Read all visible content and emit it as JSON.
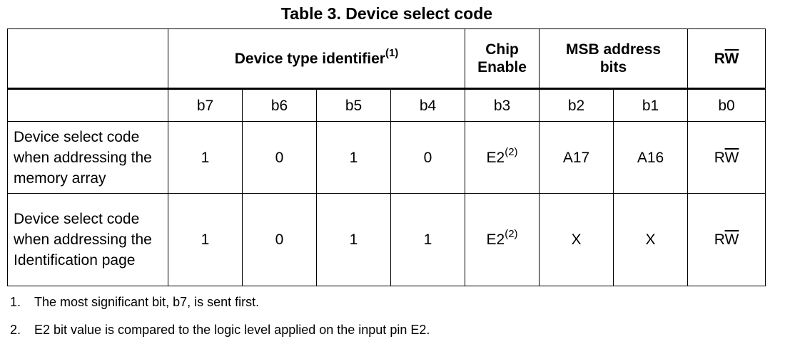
{
  "caption": "Table 3. Device select code",
  "header": {
    "device_type": "Device type identifier",
    "device_type_ref": "(1)",
    "chip_enable_line1": "Chip",
    "chip_enable_line2": "Enable",
    "msb_line1": "MSB address",
    "msb_line2": "bits",
    "rw_r": "R",
    "rw_w": "W"
  },
  "bits": [
    "b7",
    "b6",
    "b5",
    "b4",
    "b3",
    "b2",
    "b1",
    "b0"
  ],
  "rows": [
    {
      "label": "Device select code when addressing the memory array",
      "b7": "1",
      "b6": "0",
      "b5": "1",
      "b4": "0",
      "b3": "E2",
      "b3_ref": "(2)",
      "b2": "A17",
      "b1": "A16",
      "b0_r": "R",
      "b0_w": "W"
    },
    {
      "label": "Device select code when addressing the Identification page",
      "b7": "1",
      "b6": "0",
      "b5": "1",
      "b4": "1",
      "b3": "E2",
      "b3_ref": "(2)",
      "b2": "X",
      "b1": "X",
      "b0_r": "R",
      "b0_w": "W"
    }
  ],
  "notes": [
    {
      "num": "1.",
      "text": "The most significant bit, b7, is sent first."
    },
    {
      "num": "2.",
      "text": "E2 bit value is compared to the logic level applied on the input pin E2."
    }
  ]
}
